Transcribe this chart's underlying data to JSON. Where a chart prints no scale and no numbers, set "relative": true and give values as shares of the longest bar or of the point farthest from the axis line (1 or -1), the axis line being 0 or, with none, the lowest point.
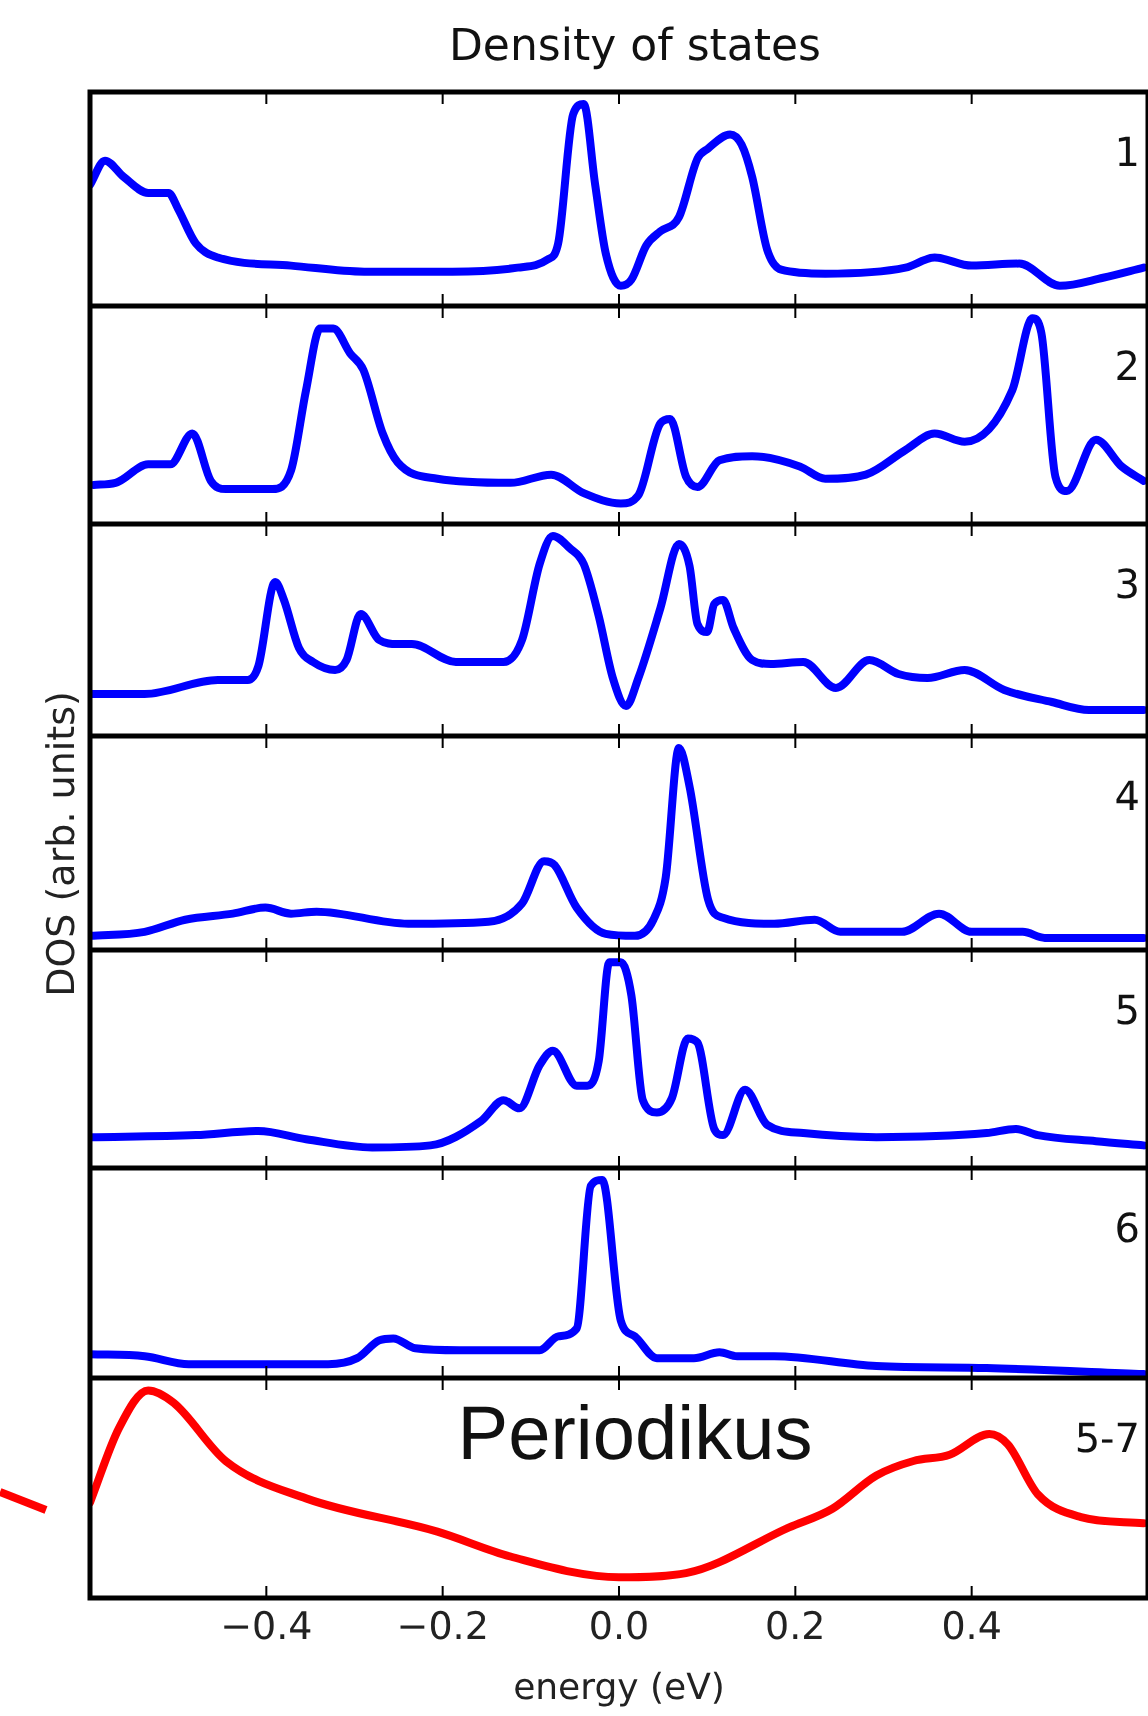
{
  "chart_data": [
    {
      "type": "line",
      "title": "Density of states",
      "relative": true,
      "xlim": [
        -0.6,
        0.6
      ],
      "xticks": [
        -0.4,
        -0.2,
        0,
        0.2,
        0.4
      ],
      "tick_labels": false,
      "annotations": [
        "1"
      ],
      "x": [
        -0.6,
        -0.583,
        -0.562,
        -0.534,
        -0.511,
        -0.5,
        -0.48,
        -0.455,
        -0.372,
        -0.289,
        -0.189,
        -0.115,
        -0.081,
        -0.069,
        -0.052,
        -0.04,
        -0.027,
        -0.015,
        0.002,
        0.014,
        0.031,
        0.047,
        0.068,
        0.089,
        0.101,
        0.126,
        0.139,
        0.151,
        0.168,
        0.184,
        0.234,
        0.325,
        0.358,
        0.4,
        0.454,
        0.5,
        0.549,
        0.595
      ],
      "series": [
        {
          "color": "#0000ff",
          "values": [
            0.6,
            0.72,
            0.64,
            0.56,
            0.56,
            0.48,
            0.31,
            0.24,
            0.2,
            0.17,
            0.17,
            0.19,
            0.23,
            0.31,
            0.95,
            1,
            0.6,
            0.26,
            0.1,
            0.13,
            0.3,
            0.37,
            0.44,
            0.73,
            0.78,
            0.85,
            0.8,
            0.64,
            0.28,
            0.18,
            0.16,
            0.19,
            0.24,
            0.2,
            0.21,
            0.1,
            0.14,
            0.19
          ]
        }
      ]
    },
    {
      "type": "line",
      "relative": true,
      "xlim": [
        -0.6,
        0.6
      ],
      "xticks": [
        -0.4,
        -0.2,
        0,
        0.2,
        0.4
      ],
      "tick_labels": false,
      "annotations": [
        "2"
      ],
      "x": [
        -0.596,
        -0.571,
        -0.534,
        -0.509,
        -0.484,
        -0.463,
        -0.446,
        -0.393,
        -0.372,
        -0.355,
        -0.339,
        -0.324,
        -0.305,
        -0.29,
        -0.268,
        -0.251,
        -0.206,
        -0.123,
        -0.077,
        -0.04,
        0.002,
        0.022,
        0.047,
        0.058,
        0.076,
        0.089,
        0.114,
        0.151,
        0.205,
        0.234,
        0.28,
        0.325,
        0.358,
        0.392,
        0.446,
        0.469,
        0.479,
        0.495,
        0.508,
        0.541,
        0.57,
        0.595
      ],
      "series": [
        {
          "color": "#0000ff",
          "values": [
            0.19,
            0.2,
            0.29,
            0.29,
            0.44,
            0.21,
            0.17,
            0.17,
            0.26,
            0.65,
            0.95,
            0.95,
            0.83,
            0.75,
            0.44,
            0.3,
            0.22,
            0.2,
            0.24,
            0.15,
            0.1,
            0.14,
            0.49,
            0.51,
            0.23,
            0.18,
            0.31,
            0.33,
            0.28,
            0.22,
            0.24,
            0.36,
            0.44,
            0.4,
            0.65,
            1,
            0.93,
            0.23,
            0.16,
            0.41,
            0.28,
            0.21
          ]
        }
      ]
    },
    {
      "type": "line",
      "relative": true,
      "xlim": [
        -0.6,
        0.6
      ],
      "xticks": [
        -0.4,
        -0.2,
        0,
        0.2,
        0.4
      ],
      "tick_labels": false,
      "annotations": [
        "3"
      ],
      "x": [
        -0.6,
        -0.538,
        -0.455,
        -0.421,
        -0.409,
        -0.39,
        -0.38,
        -0.363,
        -0.347,
        -0.322,
        -0.309,
        -0.293,
        -0.272,
        -0.251,
        -0.235,
        -0.185,
        -0.131,
        -0.11,
        -0.09,
        -0.075,
        -0.056,
        -0.04,
        -0.023,
        -0.007,
        0.008,
        0.022,
        0.047,
        0.068,
        0.08,
        0.089,
        0.1,
        0.108,
        0.118,
        0.13,
        0.151,
        0.172,
        0.209,
        0.246,
        0.284,
        0.317,
        0.35,
        0.392,
        0.437,
        0.491,
        0.533,
        0.595
      ],
      "series": [
        {
          "color": "#0000ff",
          "values": [
            0.21,
            0.21,
            0.28,
            0.28,
            0.35,
            0.77,
            0.68,
            0.44,
            0.37,
            0.33,
            0.38,
            0.61,
            0.48,
            0.46,
            0.46,
            0.37,
            0.37,
            0.48,
            0.86,
            1,
            0.94,
            0.86,
            0.6,
            0.29,
            0.15,
            0.29,
            0.64,
            0.96,
            0.85,
            0.56,
            0.52,
            0.66,
            0.68,
            0.54,
            0.38,
            0.36,
            0.37,
            0.24,
            0.38,
            0.31,
            0.29,
            0.33,
            0.23,
            0.17,
            0.13,
            0.13
          ]
        }
      ]
    },
    {
      "type": "line",
      "relative": true,
      "xlim": [
        -0.6,
        0.6
      ],
      "xticks": [
        -0.4,
        -0.2,
        0,
        0.2,
        0.4
      ],
      "tick_labels": false,
      "annotations": [
        "4"
      ],
      "ylabel": "DOS (arb. units)",
      "x": [
        -0.6,
        -0.538,
        -0.492,
        -0.438,
        -0.401,
        -0.372,
        -0.343,
        -0.239,
        -0.148,
        -0.11,
        -0.085,
        -0.073,
        -0.048,
        -0.015,
        0.018,
        0.039,
        0.053,
        0.068,
        0.08,
        0.101,
        0.118,
        0.176,
        0.222,
        0.251,
        0.321,
        0.363,
        0.4,
        0.458,
        0.483,
        0.595
      ],
      "series": [
        {
          "color": "#0000ff",
          "values": [
            0.07,
            0.09,
            0.15,
            0.18,
            0.21,
            0.18,
            0.19,
            0.13,
            0.14,
            0.23,
            0.44,
            0.42,
            0.21,
            0.08,
            0.07,
            0.15,
            0.36,
            1,
            0.81,
            0.25,
            0.16,
            0.13,
            0.15,
            0.09,
            0.09,
            0.18,
            0.09,
            0.09,
            0.06,
            0.06
          ]
        }
      ]
    },
    {
      "type": "line",
      "relative": true,
      "xlim": [
        -0.6,
        0.6
      ],
      "xticks": [
        -0.4,
        -0.2,
        0,
        0.2,
        0.4
      ],
      "tick_labels": false,
      "annotations": [
        "5"
      ],
      "x": [
        -0.6,
        -0.48,
        -0.409,
        -0.355,
        -0.28,
        -0.214,
        -0.156,
        -0.131,
        -0.113,
        -0.09,
        -0.075,
        -0.048,
        -0.036,
        -0.023,
        -0.011,
        0.002,
        0.014,
        0.027,
        0.043,
        0.06,
        0.078,
        0.089,
        0.108,
        0.118,
        0.143,
        0.168,
        0.209,
        0.292,
        0.417,
        0.45,
        0.475,
        0.541,
        0.595
      ],
      "series": [
        {
          "color": "#0000ff",
          "values": [
            0.15,
            0.16,
            0.18,
            0.14,
            0.1,
            0.11,
            0.23,
            0.33,
            0.29,
            0.5,
            0.57,
            0.4,
            0.4,
            0.52,
            1,
            1,
            0.84,
            0.33,
            0.27,
            0.34,
            0.63,
            0.61,
            0.19,
            0.16,
            0.38,
            0.21,
            0.17,
            0.15,
            0.17,
            0.19,
            0.16,
            0.13,
            0.11
          ]
        }
      ]
    },
    {
      "type": "line",
      "relative": true,
      "xlim": [
        -0.6,
        0.6
      ],
      "xticks": [
        -0.4,
        -0.2,
        0,
        0.2,
        0.4
      ],
      "tick_labels": false,
      "annotations": [
        "6"
      ],
      "x": [
        -0.6,
        -0.538,
        -0.488,
        -0.33,
        -0.297,
        -0.272,
        -0.256,
        -0.231,
        -0.181,
        -0.09,
        -0.069,
        -0.048,
        -0.032,
        -0.019,
        0.002,
        0.018,
        0.043,
        0.085,
        0.114,
        0.134,
        0.176,
        0.292,
        0.417,
        0.595
      ],
      "series": [
        {
          "color": "#0000ff",
          "values": [
            0.12,
            0.11,
            0.07,
            0.07,
            0.1,
            0.19,
            0.2,
            0.15,
            0.14,
            0.14,
            0.21,
            0.25,
            0.97,
            1,
            0.29,
            0.21,
            0.1,
            0.1,
            0.13,
            0.11,
            0.11,
            0.06,
            0.05,
            0.02
          ]
        }
      ]
    },
    {
      "type": "line",
      "relative": true,
      "xlim": [
        -0.6,
        0.6
      ],
      "xticks": [
        {
          "value": -0.4,
          "label": "−0.4"
        },
        {
          "value": -0.2,
          "label": "−0.2"
        },
        {
          "value": 0,
          "label": "0.0"
        },
        0.2,
        0.4
      ],
      "tick_labels": "x",
      "xlabel": "energy (eV)",
      "annotations": [
        "5-7",
        "Periodikus"
      ],
      "x": [
        -0.6,
        -0.567,
        -0.534,
        -0.505,
        -0.446,
        -0.355,
        -0.206,
        -0.123,
        0,
        0.076,
        0.193,
        0.242,
        0.292,
        0.334,
        0.375,
        0.42,
        0.441,
        0.475,
        0.524,
        0.595
      ],
      "series": [
        {
          "color": "#ff0000",
          "values": [
            0.46,
            0.82,
            1,
            0.94,
            0.66,
            0.48,
            0.32,
            0.2,
            0.1,
            0.12,
            0.34,
            0.43,
            0.59,
            0.66,
            0.69,
            0.79,
            0.74,
            0.5,
            0.39,
            0.36
          ]
        }
      ]
    }
  ]
}
